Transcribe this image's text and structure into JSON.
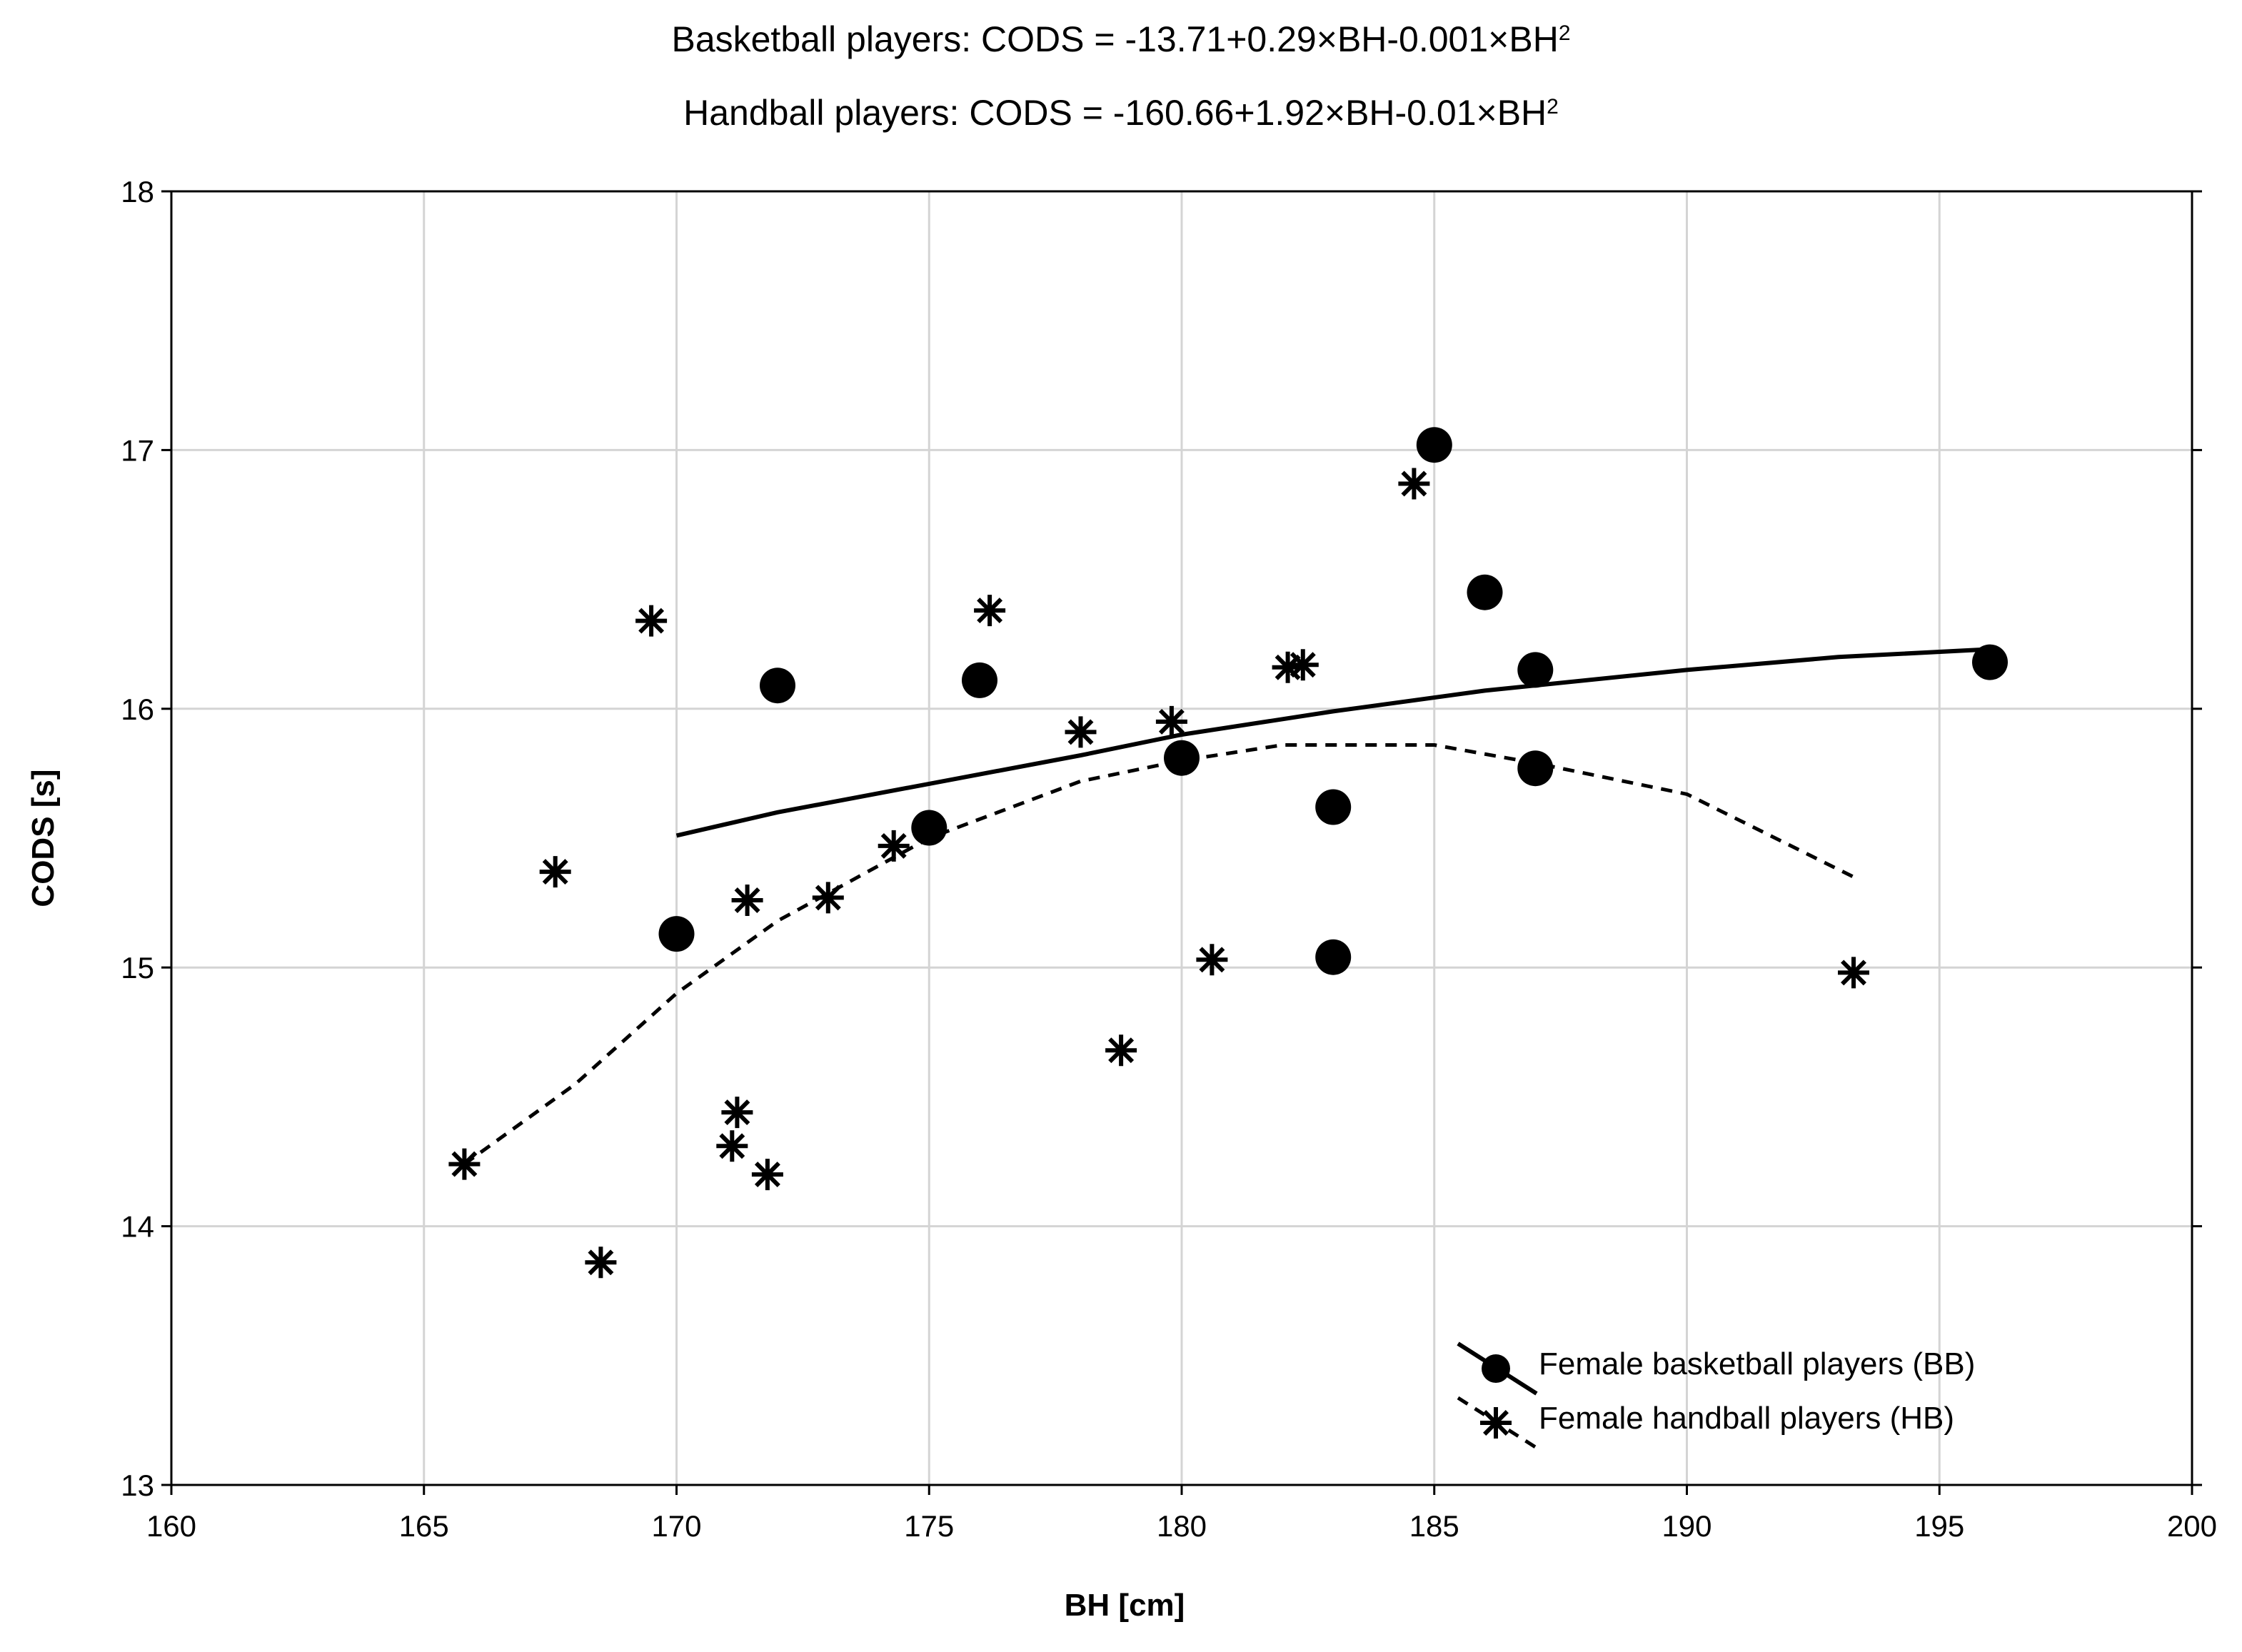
{
  "chart_data": {
    "type": "scatter",
    "title_lines": [
      {
        "prefix": "Basketball players: CODS = -13.71+0.29×BH-0.001×BH",
        "sup": "2"
      },
      {
        "prefix": "Handball players: CODS = -160.66+1.92×BH-0.01×BH",
        "sup": "2"
      }
    ],
    "xlabel": "BH [cm]",
    "ylabel": "CODS [s]",
    "xlim": [
      160,
      200
    ],
    "ylim": [
      13,
      18
    ],
    "xticks": [
      160,
      165,
      170,
      175,
      180,
      185,
      190,
      195,
      200
    ],
    "yticks": [
      13,
      14,
      15,
      16,
      17,
      18
    ],
    "grid": true,
    "legend_position": "bottom-right",
    "series": [
      {
        "name": "Female basketball players (BB)",
        "marker": "circle",
        "fit_line": "solid",
        "fit_range": [
          170,
          196
        ],
        "fit_coefficients": [
          -13.71,
          0.29,
          -0.001
        ],
        "fit_points": [
          [
            170,
            15.51
          ],
          [
            172,
            15.6
          ],
          [
            175,
            15.71
          ],
          [
            178,
            15.82
          ],
          [
            180,
            15.9
          ],
          [
            183,
            15.99
          ],
          [
            186,
            16.07
          ],
          [
            190,
            16.15
          ],
          [
            193,
            16.2
          ],
          [
            196,
            16.23
          ]
        ],
        "points": [
          {
            "x": 170,
            "y": 15.13
          },
          {
            "x": 172,
            "y": 16.09
          },
          {
            "x": 175,
            "y": 15.54
          },
          {
            "x": 176,
            "y": 16.11
          },
          {
            "x": 180,
            "y": 15.81
          },
          {
            "x": 183,
            "y": 15.62
          },
          {
            "x": 183,
            "y": 15.04
          },
          {
            "x": 185,
            "y": 17.02
          },
          {
            "x": 186,
            "y": 16.45
          },
          {
            "x": 187,
            "y": 16.15
          },
          {
            "x": 187,
            "y": 15.77
          },
          {
            "x": 196,
            "y": 16.18
          }
        ]
      },
      {
        "name": "Female handball players (HB)",
        "marker": "asterisk",
        "fit_line": "dashed",
        "fit_range": [
          165.8,
          193.3
        ],
        "fit_coefficients": [
          -160.66,
          1.92,
          -0.01
        ],
        "fit_points": [
          [
            165.8,
            14.24
          ],
          [
            168,
            14.55
          ],
          [
            170,
            14.9
          ],
          [
            172,
            15.18
          ],
          [
            175,
            15.5
          ],
          [
            178,
            15.72
          ],
          [
            180,
            15.8
          ],
          [
            182,
            15.86
          ],
          [
            185,
            15.86
          ],
          [
            187,
            15.79
          ],
          [
            190,
            15.67
          ],
          [
            193.3,
            15.35
          ]
        ],
        "points": [
          {
            "x": 165.8,
            "y": 14.24
          },
          {
            "x": 167.6,
            "y": 15.37
          },
          {
            "x": 168.5,
            "y": 13.86
          },
          {
            "x": 169.5,
            "y": 16.34
          },
          {
            "x": 171.1,
            "y": 14.31
          },
          {
            "x": 171.2,
            "y": 14.44
          },
          {
            "x": 171.4,
            "y": 15.26
          },
          {
            "x": 171.8,
            "y": 14.2
          },
          {
            "x": 173.0,
            "y": 15.27
          },
          {
            "x": 174.3,
            "y": 15.47
          },
          {
            "x": 176.2,
            "y": 16.38
          },
          {
            "x": 178.0,
            "y": 15.91
          },
          {
            "x": 178.8,
            "y": 14.68
          },
          {
            "x": 179.8,
            "y": 15.95
          },
          {
            "x": 180.6,
            "y": 15.03
          },
          {
            "x": 182.1,
            "y": 16.16
          },
          {
            "x": 182.4,
            "y": 16.17
          },
          {
            "x": 184.6,
            "y": 16.87
          },
          {
            "x": 193.3,
            "y": 14.98
          }
        ]
      }
    ]
  }
}
